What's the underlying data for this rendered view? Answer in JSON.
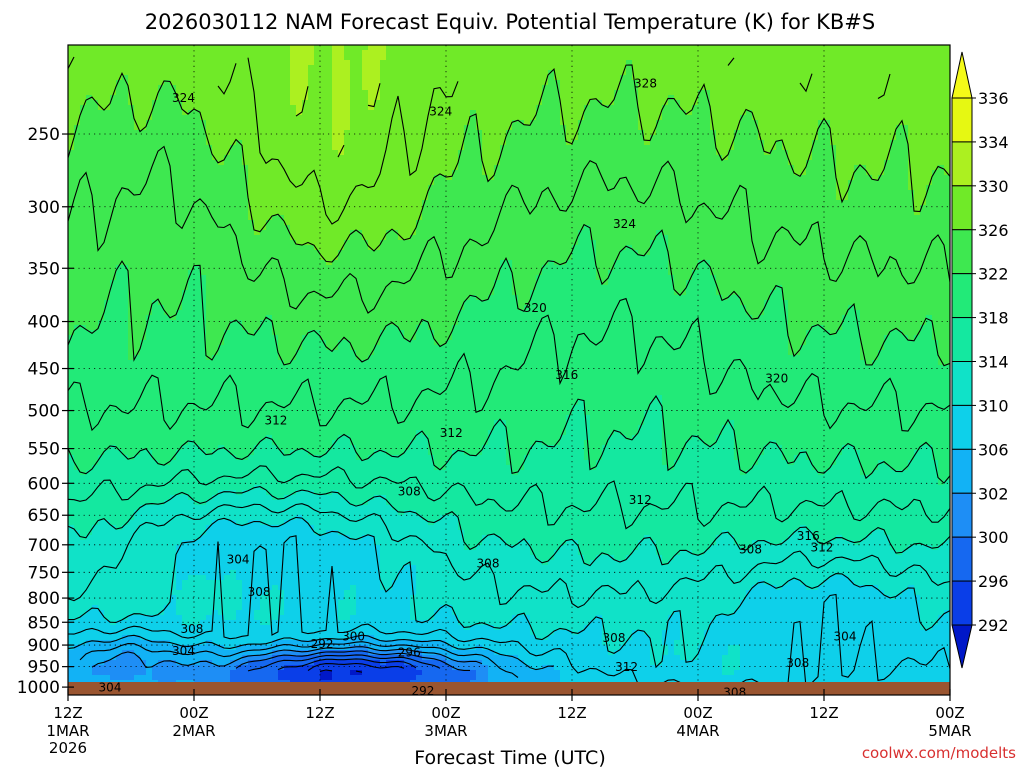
{
  "chart_data": {
    "type": "heatmap",
    "title": "2026030112 NAM Forecast Equiv. Potential Temperature (K) for KB#S",
    "xlabel": "Forecast Time (UTC)",
    "ylabel": "",
    "credit": "coolwx.com/modelts",
    "y_axis": {
      "scale": "pressure",
      "ticks": [
        "250",
        "300",
        "350",
        "400",
        "450",
        "500",
        "550",
        "600",
        "650",
        "700",
        "750",
        "800",
        "850",
        "900",
        "950",
        "1000"
      ],
      "range": [
        1020,
        200
      ]
    },
    "x_axis": {
      "ticks": [
        {
          "t": 0,
          "l1": "12Z",
          "l2": "1MAR",
          "l3": "2026"
        },
        {
          "t": 12,
          "l1": "00Z",
          "l2": "2MAR",
          "l3": ""
        },
        {
          "t": 24,
          "l1": "12Z",
          "l2": "",
          "l3": ""
        },
        {
          "t": 36,
          "l1": "00Z",
          "l2": "3MAR",
          "l3": ""
        },
        {
          "t": 48,
          "l1": "12Z",
          "l2": "",
          "l3": ""
        },
        {
          "t": 60,
          "l1": "00Z",
          "l2": "4MAR",
          "l3": ""
        },
        {
          "t": 72,
          "l1": "12Z",
          "l2": "",
          "l3": ""
        },
        {
          "t": 84,
          "l1": "00Z",
          "l2": "5MAR",
          "l3": ""
        }
      ],
      "range": [
        0,
        84
      ]
    },
    "colorbar": {
      "labels": [
        "292",
        "296",
        "300",
        "302",
        "306",
        "310",
        "314",
        "318",
        "322",
        "326",
        "330",
        "334",
        "336"
      ],
      "colors": [
        "#0018c8",
        "#0a3ee8",
        "#1668f0",
        "#1e8ef5",
        "#12b2f5",
        "#0ed0ea",
        "#10e2c8",
        "#14e8a0",
        "#22ea78",
        "#3ee850",
        "#70ea28",
        "#acf020",
        "#e6f812",
        "#f4fa18"
      ]
    },
    "contour_labels": [
      {
        "text": "328",
        "t": 55.0,
        "p": 220
      },
      {
        "text": "324",
        "t": 11.0,
        "p": 228
      },
      {
        "text": "324",
        "t": 35.5,
        "p": 236
      },
      {
        "text": "324",
        "t": 53.0,
        "p": 313
      },
      {
        "text": "320",
        "t": 44.5,
        "p": 386
      },
      {
        "text": "316",
        "t": 47.5,
        "p": 457
      },
      {
        "text": "320",
        "t": 67.5,
        "p": 461
      },
      {
        "text": "312",
        "t": 19.8,
        "p": 512
      },
      {
        "text": "312",
        "t": 36.5,
        "p": 528
      },
      {
        "text": "312",
        "t": 54.5,
        "p": 625
      },
      {
        "text": "316",
        "t": 70.5,
        "p": 684
      },
      {
        "text": "308",
        "t": 32.5,
        "p": 612
      },
      {
        "text": "304",
        "t": 16.2,
        "p": 725
      },
      {
        "text": "308",
        "t": 40.0,
        "p": 733
      },
      {
        "text": "308",
        "t": 65.0,
        "p": 707
      },
      {
        "text": "312",
        "t": 71.8,
        "p": 704
      },
      {
        "text": "308",
        "t": 18.2,
        "p": 787
      },
      {
        "text": "308",
        "t": 11.8,
        "p": 863
      },
      {
        "text": "300",
        "t": 27.2,
        "p": 880
      },
      {
        "text": "292",
        "t": 24.2,
        "p": 897
      },
      {
        "text": "296",
        "t": 32.5,
        "p": 916
      },
      {
        "text": "304",
        "t": 11.0,
        "p": 912
      },
      {
        "text": "308",
        "t": 52.0,
        "p": 883
      },
      {
        "text": "304",
        "t": 74.0,
        "p": 880
      },
      {
        "text": "308",
        "t": 69.5,
        "p": 940
      },
      {
        "text": "312",
        "t": 53.2,
        "p": 950
      },
      {
        "text": "304",
        "t": 4.0,
        "p": 1000
      },
      {
        "text": "292",
        "t": 33.8,
        "p": 1008
      },
      {
        "text": "308",
        "t": 63.5,
        "p": 1012
      }
    ]
  }
}
